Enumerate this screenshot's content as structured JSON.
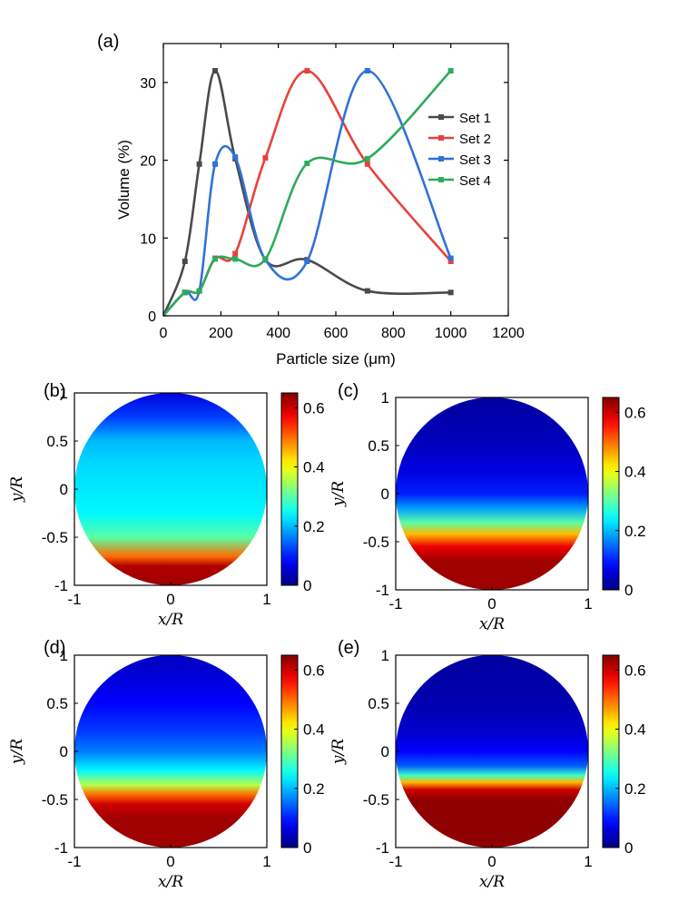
{
  "chart_data": [
    {
      "type": "line",
      "panel_label": "(a)",
      "xlabel": "Particle size (μm)",
      "ylabel": "Volume (%)",
      "xlim": [
        0,
        1200
      ],
      "ylim": [
        0,
        35
      ],
      "xticks": [
        "0",
        "200",
        "400",
        "600",
        "800",
        "1000",
        "1200"
      ],
      "yticks": [
        "0",
        "10",
        "20",
        "30"
      ],
      "legend_position": "right",
      "grid": false,
      "series": [
        {
          "name": "Set 1",
          "color": "#4a4a4a",
          "x": [
            0,
            75,
            125,
            180,
            250,
            355,
            500,
            710,
            1000
          ],
          "y": [
            0,
            7.0,
            19.5,
            31.5,
            20.2,
            7.2,
            7.2,
            3.2,
            3.0
          ]
        },
        {
          "name": "Set 2",
          "color": "#e8413c",
          "x": [
            0,
            75,
            125,
            180,
            250,
            355,
            500,
            710,
            1000
          ],
          "y": [
            0,
            3.0,
            3.2,
            7.4,
            8.0,
            20.3,
            31.5,
            19.5,
            7.0
          ]
        },
        {
          "name": "Set 3",
          "color": "#2f72d9",
          "x": [
            0,
            75,
            125,
            180,
            250,
            355,
            500,
            710,
            1000
          ],
          "y": [
            0,
            3.0,
            3.2,
            19.5,
            20.4,
            7.2,
            7.0,
            31.5,
            7.4
          ]
        },
        {
          "name": "Set 4",
          "color": "#2eaa5c",
          "x": [
            0,
            75,
            125,
            180,
            250,
            355,
            500,
            710,
            1000
          ],
          "y": [
            0,
            3.0,
            3.2,
            7.3,
            7.3,
            7.3,
            19.6,
            20.2,
            31.5
          ]
        }
      ]
    },
    {
      "type": "heatmap",
      "panel_label": "(b)",
      "xlabel": "x/R",
      "ylabel": "y/R",
      "xlim": [
        -1,
        1
      ],
      "ylim": [
        -1,
        1
      ],
      "xticks": [
        "-1",
        "0",
        "1"
      ],
      "yticks": [
        "-1",
        "-0.5",
        "0",
        "0.5",
        "1"
      ],
      "colorbar": {
        "range": [
          0,
          0.65
        ],
        "ticks": [
          "0",
          "0.2",
          "0.4",
          "0.6"
        ],
        "colormap": "jet"
      },
      "profile_y": [
        1,
        0.75,
        0.5,
        0.25,
        0,
        -0.25,
        -0.5,
        -0.7,
        -0.8,
        -1
      ],
      "profile_value": [
        0.06,
        0.12,
        0.2,
        0.22,
        0.23,
        0.24,
        0.3,
        0.5,
        0.62,
        0.63
      ]
    },
    {
      "type": "heatmap",
      "panel_label": "(c)",
      "xlabel": "x/R",
      "ylabel": "y/R",
      "xlim": [
        -1,
        1
      ],
      "ylim": [
        -1,
        1
      ],
      "xticks": [
        "-1",
        "0",
        "1"
      ],
      "yticks": [
        "-1",
        "-0.5",
        "0",
        "0.5",
        "1"
      ],
      "colorbar": {
        "range": [
          0,
          0.65
        ],
        "ticks": [
          "0",
          "0.2",
          "0.4",
          "0.6"
        ],
        "colormap": "jet"
      },
      "profile_y": [
        1,
        0.5,
        0.25,
        0,
        -0.15,
        -0.3,
        -0.42,
        -0.55,
        -0.7,
        -1
      ],
      "profile_value": [
        0.02,
        0.04,
        0.06,
        0.1,
        0.18,
        0.3,
        0.45,
        0.58,
        0.63,
        0.63
      ]
    },
    {
      "type": "heatmap",
      "panel_label": "(d)",
      "xlabel": "x/R",
      "ylabel": "y/R",
      "xlim": [
        -1,
        1
      ],
      "ylim": [
        -1,
        1
      ],
      "xticks": [
        "-1",
        "0",
        "1"
      ],
      "yticks": [
        "-1",
        "-0.5",
        "0",
        "0.5",
        "1"
      ],
      "colorbar": {
        "range": [
          0,
          0.65
        ],
        "ticks": [
          "0",
          "0.2",
          "0.4",
          "0.6"
        ],
        "colormap": "jet"
      },
      "profile_y": [
        1,
        0.5,
        0.2,
        0,
        -0.2,
        -0.35,
        -0.45,
        -0.55,
        -0.7,
        -1
      ],
      "profile_value": [
        0.04,
        0.08,
        0.12,
        0.16,
        0.24,
        0.36,
        0.5,
        0.6,
        0.63,
        0.63
      ]
    },
    {
      "type": "heatmap",
      "panel_label": "(e)",
      "xlabel": "x/R",
      "ylabel": "y/R",
      "xlim": [
        -1,
        1
      ],
      "ylim": [
        -1,
        1
      ],
      "xticks": [
        "-1",
        "0",
        "1"
      ],
      "yticks": [
        "-1",
        "-0.5",
        "0",
        "0.5",
        "1"
      ],
      "colorbar": {
        "range": [
          0,
          0.65
        ],
        "ticks": [
          "0",
          "0.2",
          "0.4",
          "0.6"
        ],
        "colormap": "jet"
      },
      "profile_y": [
        1,
        0.5,
        0.2,
        0,
        -0.15,
        -0.25,
        -0.32,
        -0.4,
        -0.5,
        -1
      ],
      "profile_value": [
        0.02,
        0.03,
        0.05,
        0.08,
        0.14,
        0.28,
        0.45,
        0.6,
        0.64,
        0.64
      ]
    }
  ]
}
